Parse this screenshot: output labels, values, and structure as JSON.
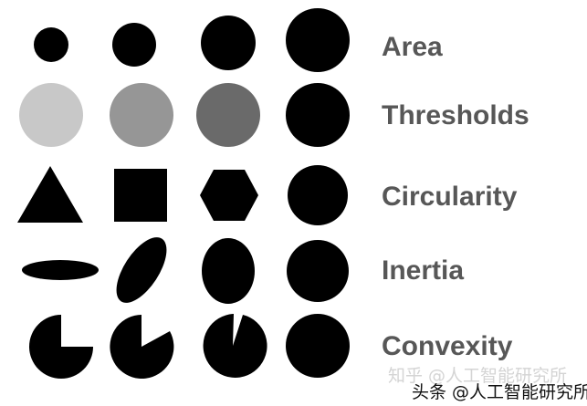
{
  "rows": [
    {
      "label": "Area"
    },
    {
      "label": "Thresholds"
    },
    {
      "label": "Circularity"
    },
    {
      "label": "Inertia"
    },
    {
      "label": "Convexity"
    }
  ],
  "shape_colors": {
    "black": "#000000",
    "gray_light": "#c8c8c8",
    "gray_mid": "#969696",
    "gray_dark": "#6a6a6a"
  },
  "label_color": "#575757",
  "watermark": {
    "faint_text": "知乎 @人工智能研究所",
    "main_text": "头条 @人工智能研究所"
  }
}
